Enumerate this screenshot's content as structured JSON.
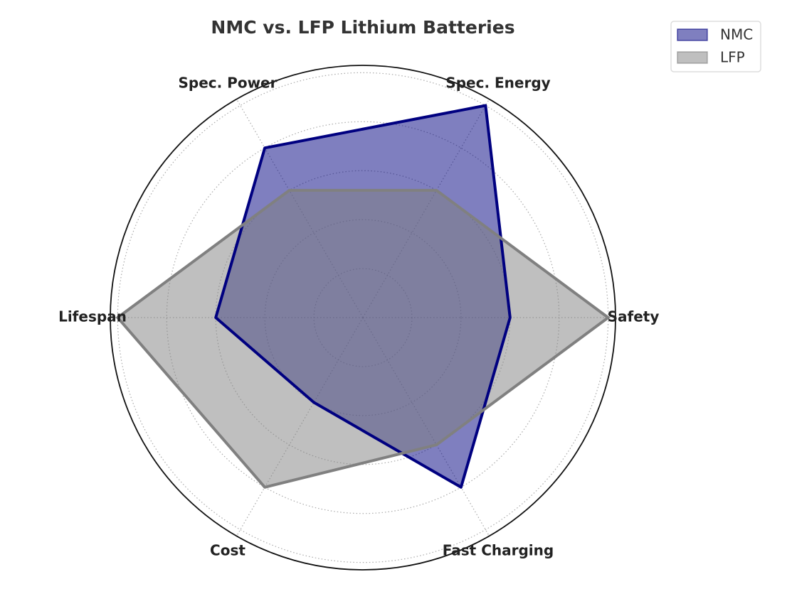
{
  "chart_data": {
    "type": "radar",
    "title": "NMC vs. LFP Lithium Batteries",
    "categories": [
      "Safety",
      "Spec. Energy",
      "Spec. Power",
      "Lifespan",
      "Cost",
      "Fast Charging"
    ],
    "series": [
      {
        "name": "NMC",
        "color": "#000080",
        "values": [
          3,
          5,
          4,
          3,
          2,
          4
        ]
      },
      {
        "name": "LFP",
        "color": "#808080",
        "values": [
          5,
          3,
          3,
          5,
          4,
          3
        ]
      }
    ],
    "ylim": [
      0,
      5.15
    ],
    "yticks": [
      1,
      2,
      3,
      4,
      5
    ],
    "grid": true,
    "legend": "upper right"
  }
}
